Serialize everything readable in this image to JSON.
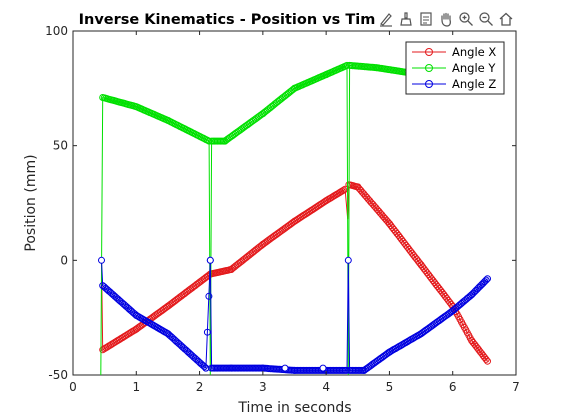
{
  "toolbar": {
    "icons": [
      "edit-plot-icon",
      "data-brush-icon",
      "insert-legend-icon",
      "pan-hand-icon",
      "zoom-in-icon",
      "zoom-out-icon",
      "home-icon"
    ]
  },
  "chart_data": {
    "type": "line",
    "title": "Inverse Kinematics - Position vs Tim",
    "xlabel": "Time in seconds",
    "ylabel": "Position (mm)",
    "xlim": [
      0,
      7
    ],
    "ylim": [
      -50,
      100
    ],
    "xticks": [
      0,
      1,
      2,
      3,
      4,
      5,
      6,
      7
    ],
    "yticks": [
      -50,
      0,
      50,
      100
    ],
    "grid": false,
    "legend_position": "top-right",
    "marker": "circle",
    "series": [
      {
        "name": "Angle X",
        "color": "#e31a1c",
        "points": [
          [
            0.45,
            0
          ],
          [
            0.47,
            -39
          ],
          [
            1.0,
            -30
          ],
          [
            1.5,
            -20
          ],
          [
            2.17,
            -6
          ],
          [
            2.5,
            -4
          ],
          [
            3.0,
            7
          ],
          [
            3.5,
            17
          ],
          [
            4.0,
            26
          ],
          [
            4.3,
            31
          ],
          [
            4.34,
            18
          ],
          [
            4.36,
            33
          ],
          [
            4.5,
            32
          ],
          [
            5.0,
            16
          ],
          [
            5.5,
            -2
          ],
          [
            6.0,
            -20
          ],
          [
            6.3,
            -35
          ],
          [
            6.55,
            -44
          ]
        ]
      },
      {
        "name": "Angle Y",
        "color": "#00e000",
        "points": [
          [
            0.44,
            -50
          ],
          [
            0.47,
            71
          ],
          [
            1.0,
            67
          ],
          [
            1.5,
            61
          ],
          [
            2.15,
            52
          ],
          [
            2.17,
            -50
          ],
          [
            2.19,
            52
          ],
          [
            2.4,
            52
          ],
          [
            3.0,
            64
          ],
          [
            3.5,
            75
          ],
          [
            4.0,
            81
          ],
          [
            4.33,
            85
          ],
          [
            4.35,
            -50
          ],
          [
            4.37,
            85
          ],
          [
            4.8,
            84
          ],
          [
            5.5,
            81
          ],
          [
            6.0,
            78
          ],
          [
            6.5,
            74
          ]
        ]
      },
      {
        "name": "Angle Z",
        "color": "#0000e0",
        "points": [
          [
            0.45,
            0
          ],
          [
            0.47,
            -11
          ],
          [
            1.0,
            -24
          ],
          [
            1.5,
            -32
          ],
          [
            2.1,
            -47
          ],
          [
            2.17,
            0
          ],
          [
            2.19,
            -47
          ],
          [
            2.5,
            -47
          ],
          [
            3.0,
            -47
          ],
          [
            3.5,
            -48
          ],
          [
            4.0,
            -48
          ],
          [
            4.33,
            -48
          ],
          [
            4.35,
            0
          ],
          [
            4.37,
            -48
          ],
          [
            4.6,
            -48
          ],
          [
            5.0,
            -40
          ],
          [
            5.5,
            -32
          ],
          [
            6.0,
            -22
          ],
          [
            6.3,
            -15
          ],
          [
            6.55,
            -8
          ]
        ]
      }
    ],
    "stem_markers": [
      [
        0.45,
        0
      ],
      [
        2.17,
        0
      ],
      [
        4.35,
        0
      ]
    ],
    "flat_markers": [
      [
        3.35,
        -47
      ],
      [
        3.95,
        -47
      ]
    ]
  }
}
